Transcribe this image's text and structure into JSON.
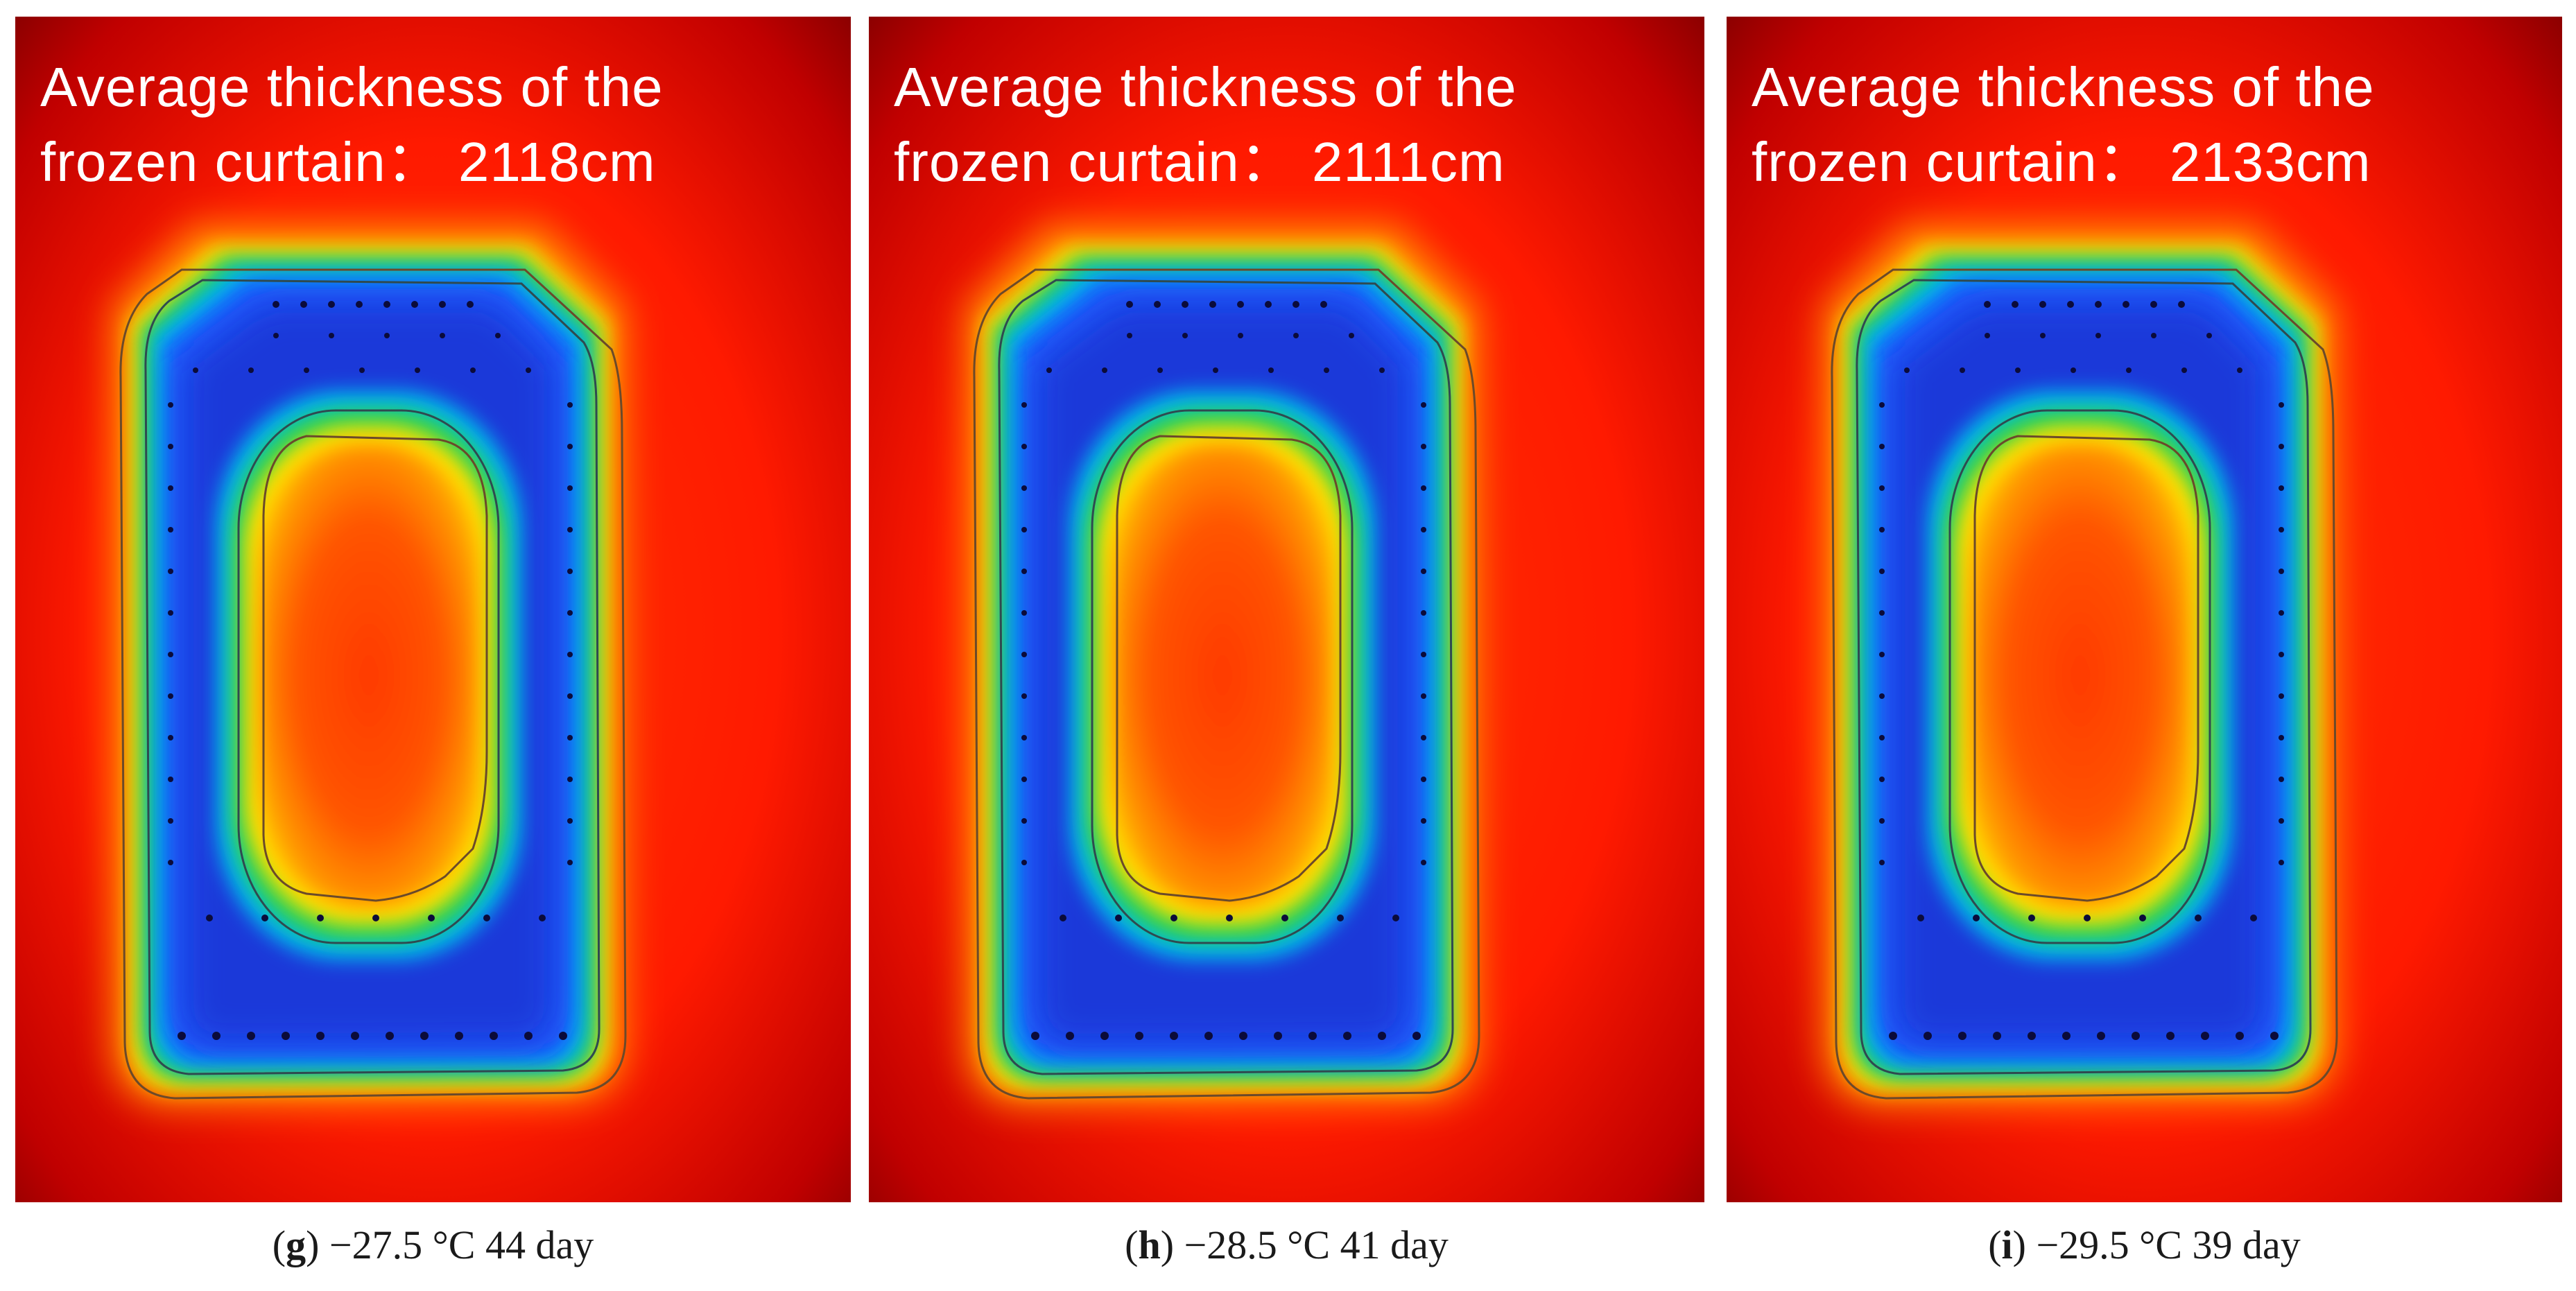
{
  "figure": {
    "colors": {
      "warm_outer": "#8b0000",
      "warm_mid": "#ff2a00",
      "orange": "#ff8800",
      "yellow": "#ffe000",
      "green": "#20d050",
      "cyan": "#00b0f0",
      "blue": "#1a55ff",
      "deep_blue": "#1a1a9a",
      "contour": "#5a4b2a",
      "pipe_marker": "#000040"
    },
    "panels": [
      {
        "id": "g",
        "title_line1": "Average thickness of the",
        "title_line2": "frozen curtain： 2118cm",
        "caption_letter": "g",
        "caption_text": " −27.5 °C 44 day"
      },
      {
        "id": "h",
        "title_line1": "Average thickness of the",
        "title_line2": "frozen curtain： 2111cm",
        "caption_letter": "h",
        "caption_text": " −28.5 °C 41 day"
      },
      {
        "id": "i",
        "title_line1": "Average thickness of the",
        "title_line2": "frozen curtain： 2133cm",
        "caption_letter": "i",
        "caption_text": " −29.5 °C 39 day"
      }
    ]
  }
}
